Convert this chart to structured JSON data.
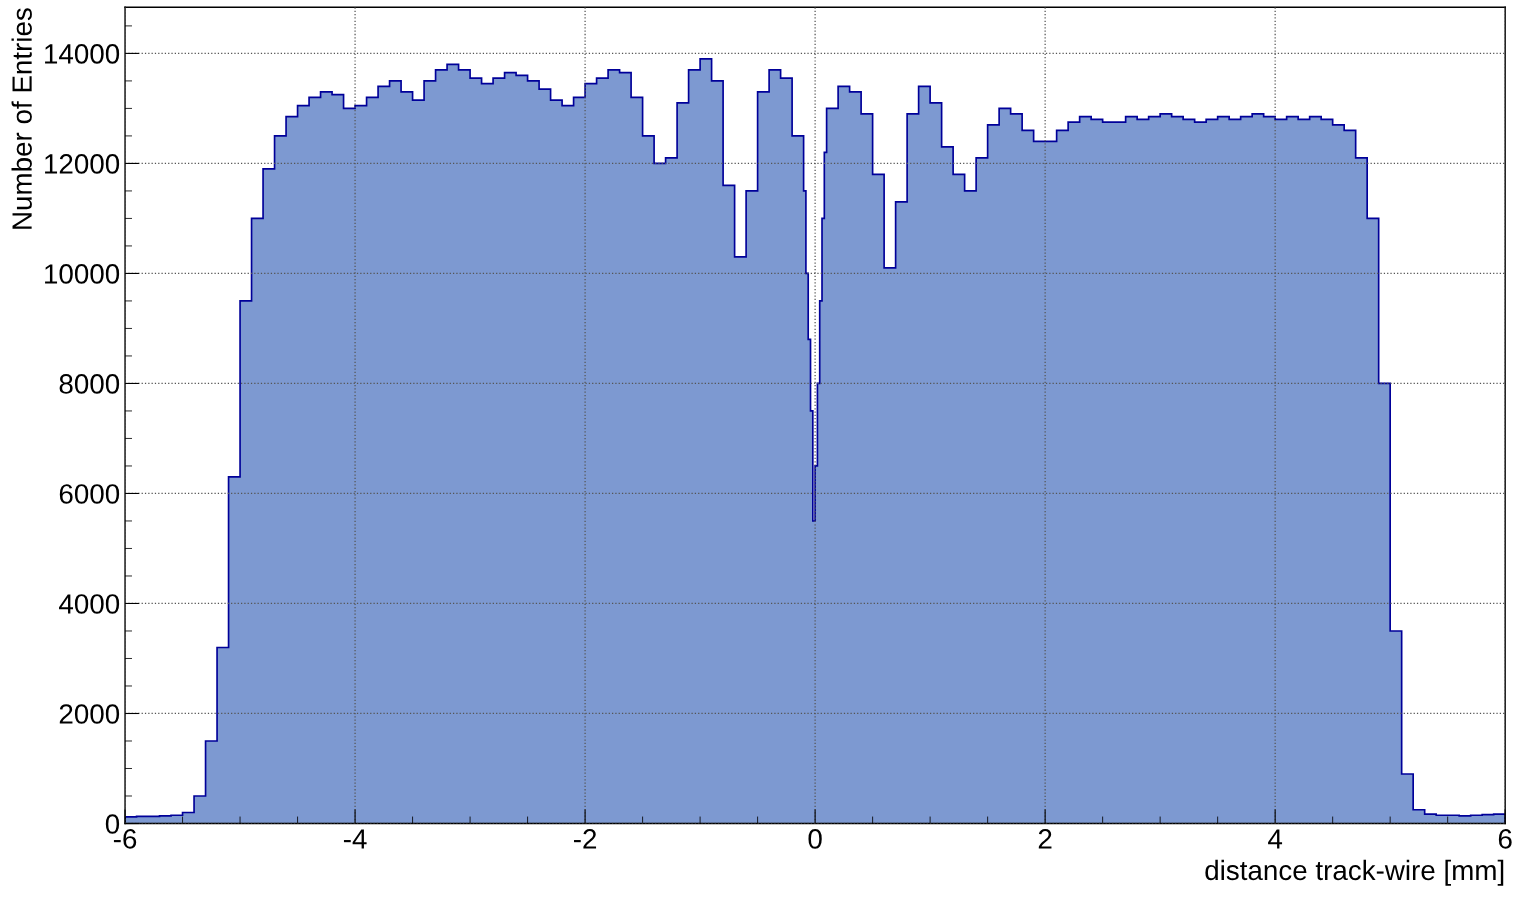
{
  "chart_data": {
    "type": "histogram",
    "xlabel": "distance track-wire [mm]",
    "ylabel": "Number of Entries",
    "color": "#7d99d1",
    "bins": [
      -6.0,
      -5.9,
      -5.8,
      -5.7,
      -5.6,
      -5.5,
      -5.4,
      -5.3,
      -5.2,
      -5.1,
      -5.0,
      -4.9,
      -4.8,
      -4.7,
      -4.6,
      -4.5,
      -4.4,
      -4.3,
      -4.2,
      -4.1,
      -4.0,
      -3.9,
      -3.8,
      -3.7,
      -3.6,
      -3.5,
      -3.4,
      -3.3,
      -3.2,
      -3.1,
      -3.0,
      -2.9,
      -2.8,
      -2.7,
      -2.6,
      -2.5,
      -2.4,
      -2.3,
      -2.2,
      -2.1,
      -2.0,
      -1.9,
      -1.8,
      -1.7,
      -1.6,
      -1.5,
      -1.4,
      -1.3,
      -1.2,
      -1.1,
      -1.0,
      -0.9,
      -0.8,
      -0.7,
      -0.6,
      -0.5,
      -0.4,
      -0.3,
      -0.2,
      -0.1,
      -0.08,
      -0.06,
      -0.04,
      -0.02,
      0.0,
      0.02,
      0.04,
      0.06,
      0.08,
      0.1,
      0.2,
      0.3,
      0.4,
      0.5,
      0.6,
      0.7,
      0.8,
      0.9,
      1.0,
      1.1,
      1.2,
      1.3,
      1.4,
      1.5,
      1.6,
      1.7,
      1.8,
      1.9,
      2.0,
      2.1,
      2.2,
      2.3,
      2.4,
      2.5,
      2.6,
      2.7,
      2.8,
      2.9,
      3.0,
      3.1,
      3.2,
      3.3,
      3.4,
      3.5,
      3.6,
      3.7,
      3.8,
      3.9,
      4.0,
      4.1,
      4.2,
      4.3,
      4.4,
      4.5,
      4.6,
      4.7,
      4.8,
      4.9,
      5.0,
      5.1,
      5.2,
      5.3,
      5.4,
      5.5,
      5.6,
      5.7,
      5.8,
      5.9,
      6.0
    ],
    "values": [
      120,
      130,
      130,
      140,
      150,
      200,
      500,
      1500,
      3200,
      6300,
      9500,
      11000,
      11900,
      12500,
      12850,
      13050,
      13200,
      13300,
      13250,
      13000,
      13050,
      13200,
      13400,
      13500,
      13300,
      13150,
      13500,
      13700,
      13800,
      13700,
      13550,
      13450,
      13550,
      13650,
      13600,
      13500,
      13350,
      13150,
      13050,
      13200,
      13450,
      13550,
      13700,
      13650,
      13200,
      12500,
      12000,
      12100,
      13100,
      13700,
      13900,
      13500,
      11600,
      10300,
      11500,
      13300,
      13700,
      13550,
      12500,
      11500,
      10000,
      8800,
      7500,
      5500,
      6500,
      8000,
      9500,
      11000,
      12200,
      13000,
      13400,
      13300,
      12900,
      11800,
      10100,
      11300,
      12900,
      13400,
      13100,
      12300,
      11800,
      11500,
      12100,
      12700,
      13000,
      12900,
      12600,
      12400,
      12400,
      12600,
      12750,
      12850,
      12800,
      12750,
      12750,
      12850,
      12800,
      12850,
      12900,
      12850,
      12800,
      12750,
      12800,
      12850,
      12800,
      12850,
      12900,
      12850,
      12800,
      12850,
      12800,
      12850,
      12800,
      12700,
      12600,
      12100,
      11000,
      8000,
      3500,
      900,
      250,
      170,
      150,
      150,
      140,
      150,
      160,
      170
    ],
    "xlim": [
      -6,
      6
    ],
    "xticks": [
      -6,
      -4,
      -2,
      0,
      2,
      4,
      6
    ],
    "ylim": [
      0,
      14840
    ],
    "yticks": [
      0,
      2000,
      4000,
      6000,
      8000,
      10000,
      12000,
      14000
    ],
    "grid": true
  }
}
